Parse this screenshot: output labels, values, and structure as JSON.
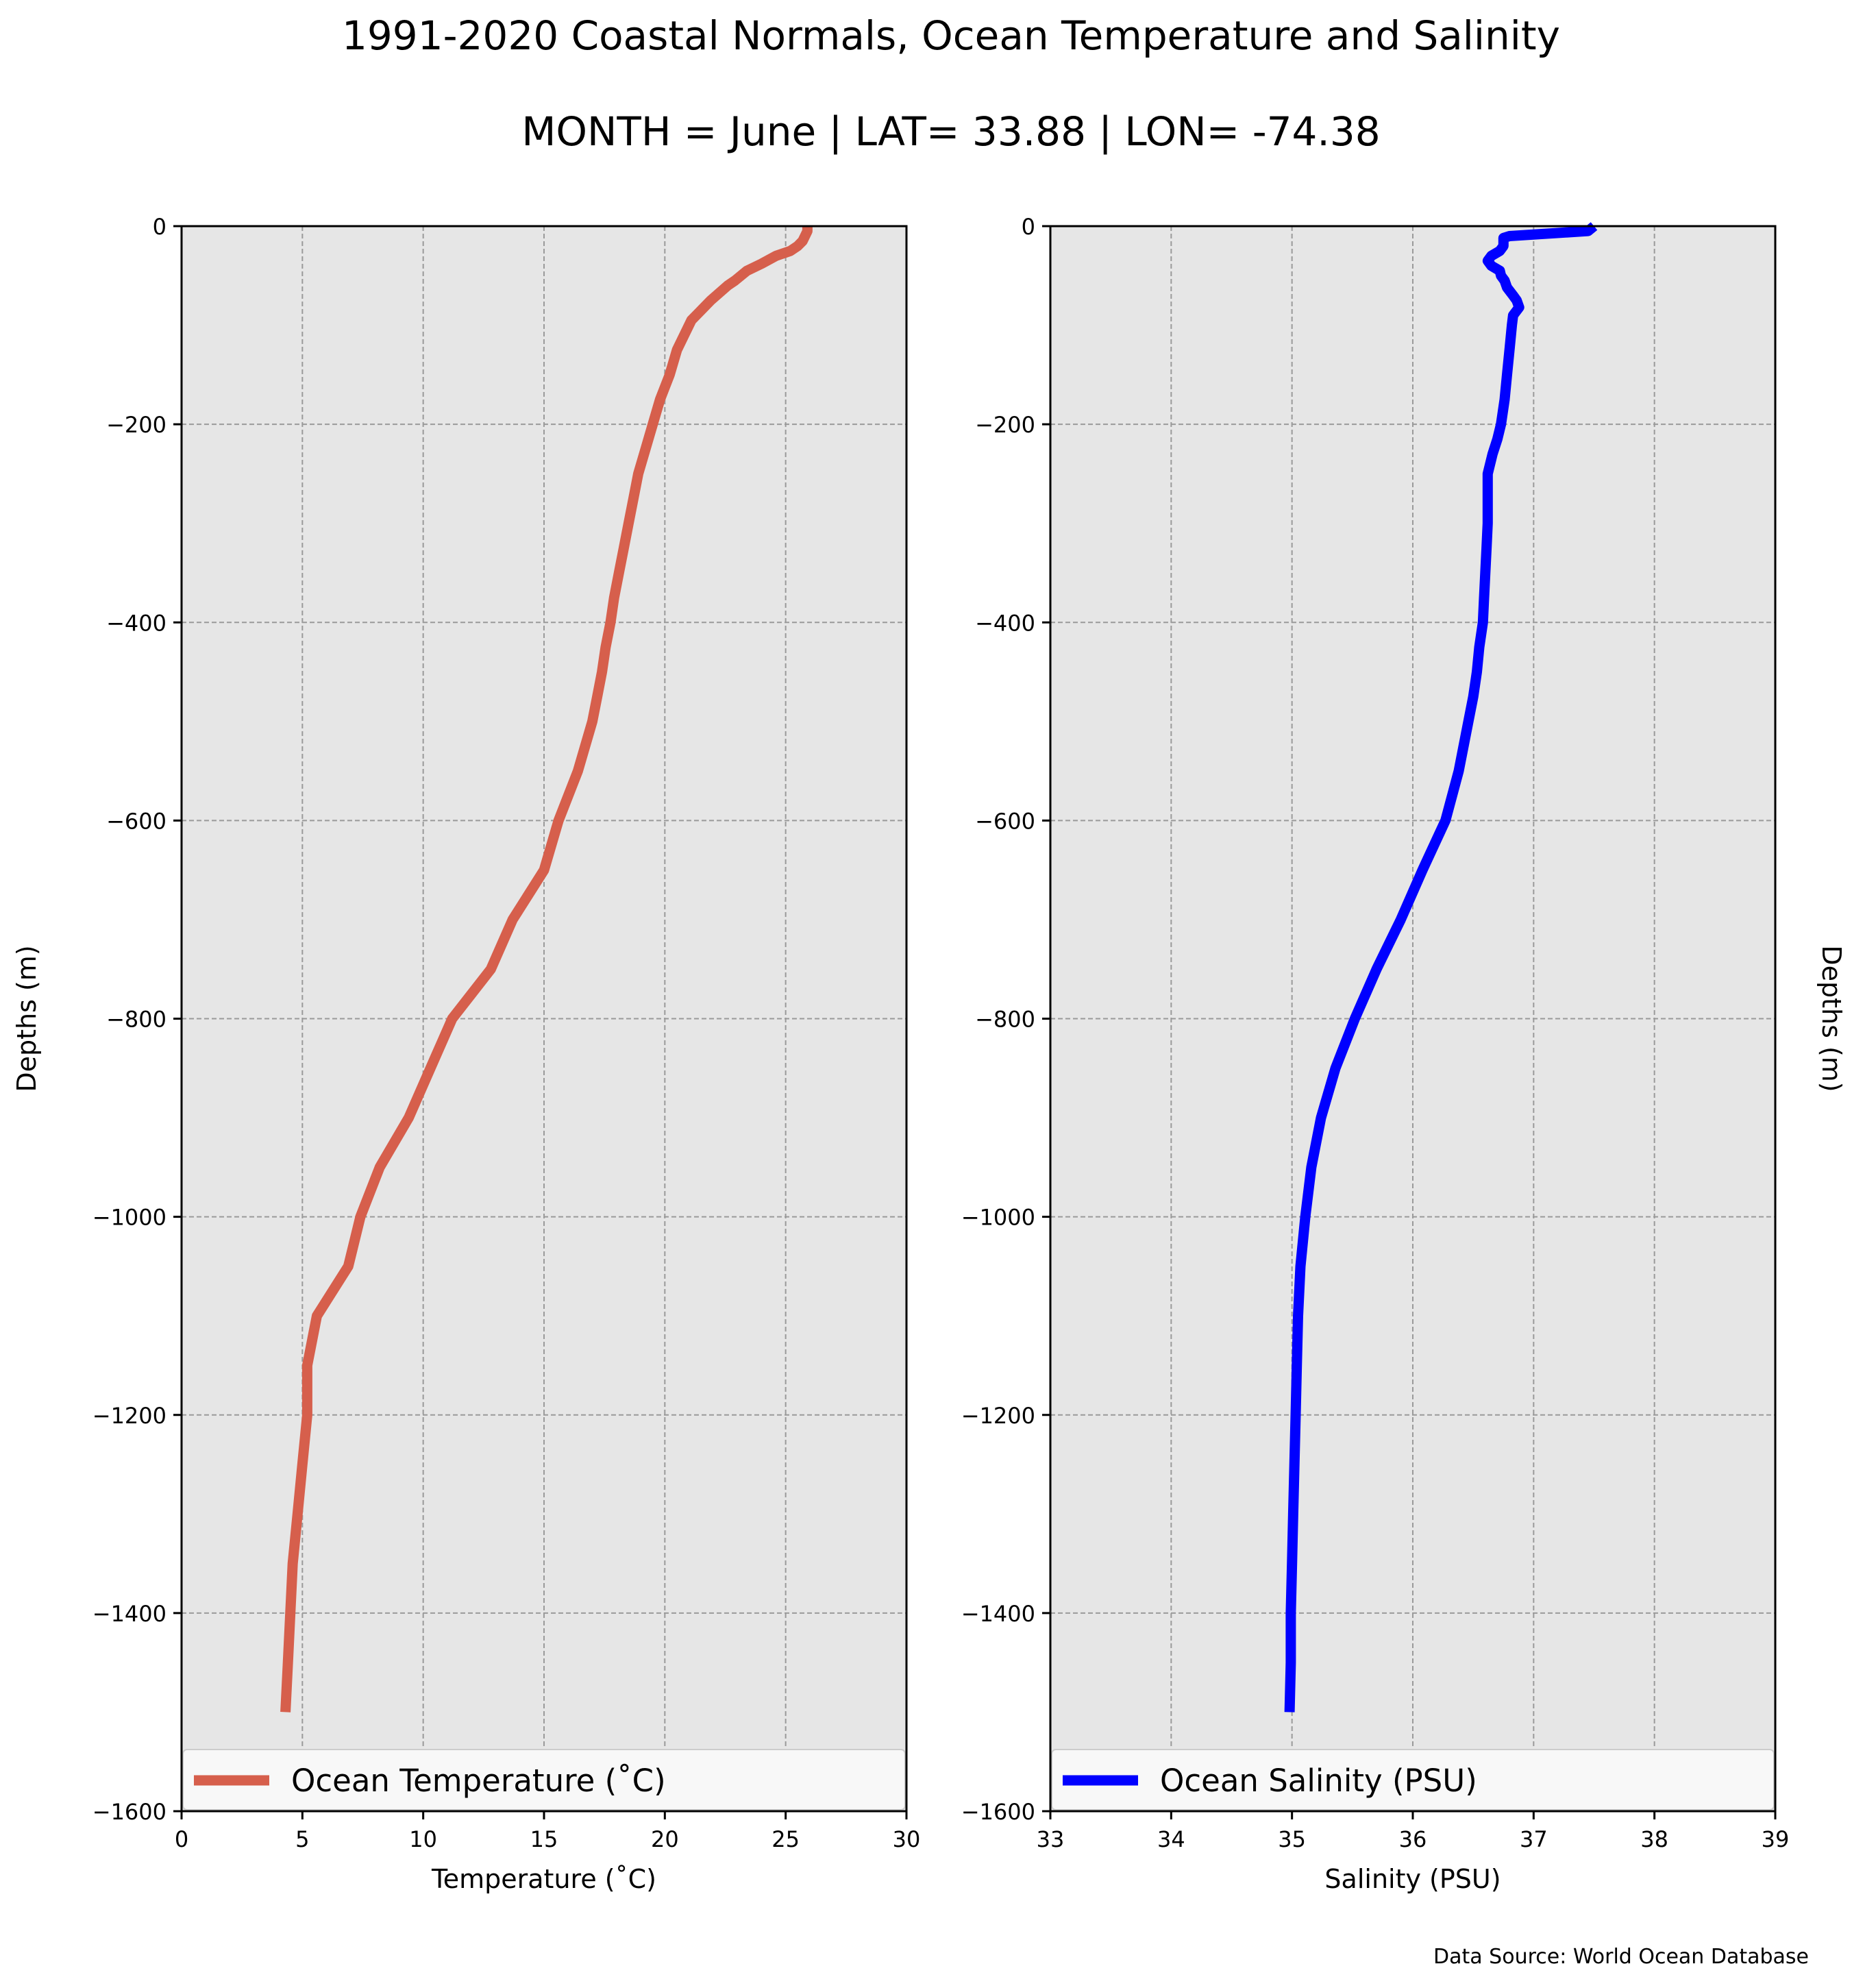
{
  "figure": {
    "title": "1991-2020 Coastal Normals, Ocean Temperature and Salinity",
    "subtitle": "MONTH = June | LAT= 33.88 | LON= -74.38",
    "source": "Data Source: World Ocean Database"
  },
  "chart_data": [
    {
      "type": "line",
      "xlabel": "Temperature ($^\\circ$C)",
      "xlabel_display": "Temperature (˚C)",
      "ylabel": "Depths (m)",
      "xlim": [
        0,
        30
      ],
      "ylim": [
        -1600,
        0
      ],
      "xticks": [
        0,
        5,
        10,
        15,
        20,
        25,
        30
      ],
      "yticks": [
        0,
        -200,
        -400,
        -600,
        -800,
        -1000,
        -1200,
        -1400,
        -1600
      ],
      "grid": true,
      "legend_position": "bottom",
      "series": [
        {
          "name": "Ocean Temperature (˚C)",
          "color": "#d65f4c",
          "points": [
            [
              25.9,
              0
            ],
            [
              25.9,
              -5
            ],
            [
              25.8,
              -10
            ],
            [
              25.7,
              -15
            ],
            [
              25.5,
              -20
            ],
            [
              25.2,
              -25
            ],
            [
              24.6,
              -30
            ],
            [
              24.0,
              -38
            ],
            [
              23.4,
              -45
            ],
            [
              22.9,
              -55
            ],
            [
              22.6,
              -60
            ],
            [
              21.9,
              -75
            ],
            [
              21.5,
              -85
            ],
            [
              21.1,
              -95
            ],
            [
              20.5,
              -125
            ],
            [
              20.2,
              -150
            ],
            [
              19.8,
              -175
            ],
            [
              19.5,
              -200
            ],
            [
              19.2,
              -225
            ],
            [
              18.9,
              -250
            ],
            [
              18.7,
              -275
            ],
            [
              18.5,
              -300
            ],
            [
              18.3,
              -325
            ],
            [
              18.1,
              -350
            ],
            [
              17.9,
              -375
            ],
            [
              17.75,
              -400
            ],
            [
              17.55,
              -425
            ],
            [
              17.4,
              -450
            ],
            [
              17.2,
              -475
            ],
            [
              17.0,
              -500
            ],
            [
              16.4,
              -550
            ],
            [
              15.6,
              -600
            ],
            [
              15.0,
              -650
            ],
            [
              13.7,
              -700
            ],
            [
              12.8,
              -750
            ],
            [
              11.2,
              -800
            ],
            [
              10.3,
              -850
            ],
            [
              9.4,
              -900
            ],
            [
              8.2,
              -950
            ],
            [
              7.4,
              -1000
            ],
            [
              6.9,
              -1050
            ],
            [
              5.6,
              -1100
            ],
            [
              5.2,
              -1150
            ],
            [
              5.2,
              -1200
            ],
            [
              5.0,
              -1250
            ],
            [
              4.8,
              -1300
            ],
            [
              4.6,
              -1350
            ],
            [
              4.5,
              -1400
            ],
            [
              4.4,
              -1450
            ],
            [
              4.3,
              -1500
            ]
          ]
        }
      ]
    },
    {
      "type": "line",
      "xlabel": "Salinity (PSU)",
      "ylabel": "Depths (m)",
      "xlim": [
        33,
        39
      ],
      "ylim": [
        -1600,
        0
      ],
      "xticks": [
        33,
        34,
        35,
        36,
        37,
        38,
        39
      ],
      "yticks": [
        0,
        -200,
        -400,
        -600,
        -800,
        -1000,
        -1200,
        -1400,
        -1600
      ],
      "grid": true,
      "legend_position": "bottom",
      "series": [
        {
          "name": "Ocean Salinity (PSU)",
          "color": "#0000ff",
          "points": [
            [
              37.5,
              0
            ],
            [
              37.45,
              -5
            ],
            [
              36.8,
              -10
            ],
            [
              36.75,
              -12
            ],
            [
              36.75,
              -15
            ],
            [
              36.75,
              -20
            ],
            [
              36.72,
              -25
            ],
            [
              36.65,
              -30
            ],
            [
              36.62,
              -35
            ],
            [
              36.65,
              -40
            ],
            [
              36.72,
              -45
            ],
            [
              36.73,
              -50
            ],
            [
              36.76,
              -55
            ],
            [
              36.78,
              -62
            ],
            [
              36.83,
              -70
            ],
            [
              36.86,
              -75
            ],
            [
              36.88,
              -82
            ],
            [
              36.83,
              -90
            ],
            [
              36.82,
              -100
            ],
            [
              36.8,
              -125
            ],
            [
              36.78,
              -150
            ],
            [
              36.76,
              -175
            ],
            [
              36.73,
              -200
            ],
            [
              36.7,
              -215
            ],
            [
              36.66,
              -230
            ],
            [
              36.62,
              -250
            ],
            [
              36.62,
              -275
            ],
            [
              36.62,
              -300
            ],
            [
              36.61,
              -325
            ],
            [
              36.6,
              -350
            ],
            [
              36.59,
              -375
            ],
            [
              36.58,
              -400
            ],
            [
              36.55,
              -425
            ],
            [
              36.53,
              -450
            ],
            [
              36.5,
              -475
            ],
            [
              36.46,
              -500
            ],
            [
              36.38,
              -550
            ],
            [
              36.27,
              -600
            ],
            [
              36.08,
              -650
            ],
            [
              35.9,
              -700
            ],
            [
              35.7,
              -750
            ],
            [
              35.52,
              -800
            ],
            [
              35.36,
              -850
            ],
            [
              35.24,
              -900
            ],
            [
              35.16,
              -950
            ],
            [
              35.11,
              -1000
            ],
            [
              35.07,
              -1050
            ],
            [
              35.05,
              -1100
            ],
            [
              35.04,
              -1150
            ],
            [
              35.03,
              -1200
            ],
            [
              35.02,
              -1250
            ],
            [
              35.01,
              -1300
            ],
            [
              35.0,
              -1350
            ],
            [
              34.99,
              -1400
            ],
            [
              34.99,
              -1450
            ],
            [
              34.98,
              -1500
            ]
          ]
        }
      ]
    }
  ]
}
